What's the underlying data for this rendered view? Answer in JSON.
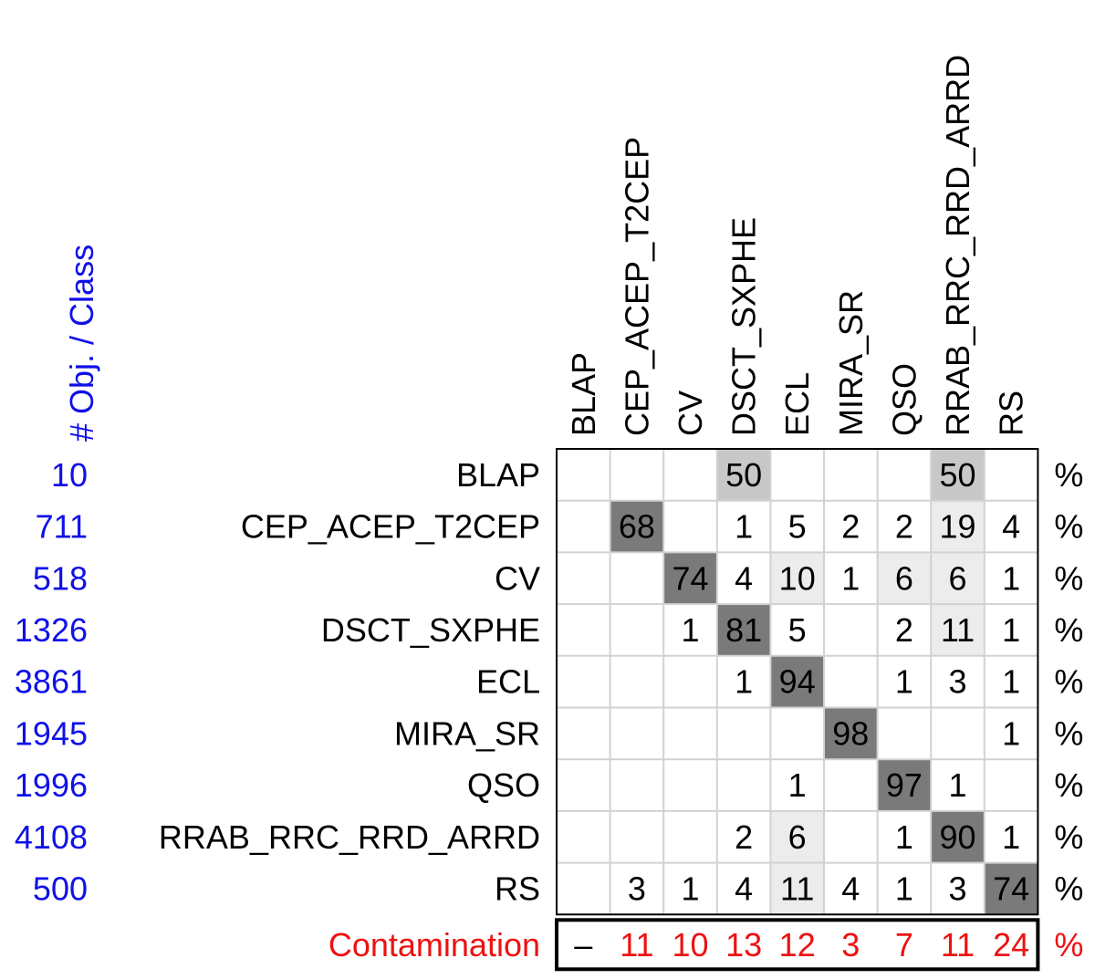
{
  "chart_data": {
    "type": "heatmap",
    "title": "",
    "count_header": "# Obj. / Class",
    "columns": [
      "BLAP",
      "CEP_ACEP_T2CEP",
      "CV",
      "DSCT_SXPHE",
      "ECL",
      "MIRA_SR",
      "QSO",
      "RRAB_RRC_RRD_ARRD",
      "RS"
    ],
    "rows": [
      {
        "label": "BLAP",
        "count": "10",
        "values": [
          null,
          null,
          null,
          50,
          null,
          null,
          null,
          50,
          null
        ]
      },
      {
        "label": "CEP_ACEP_T2CEP",
        "count": "711",
        "values": [
          null,
          68,
          null,
          1,
          5,
          2,
          2,
          19,
          4
        ]
      },
      {
        "label": "CV",
        "count": "518",
        "values": [
          null,
          null,
          74,
          4,
          10,
          1,
          6,
          6,
          1
        ]
      },
      {
        "label": "DSCT_SXPHE",
        "count": "1326",
        "values": [
          null,
          null,
          1,
          81,
          5,
          null,
          2,
          11,
          1
        ]
      },
      {
        "label": "ECL",
        "count": "3861",
        "values": [
          null,
          null,
          null,
          1,
          94,
          null,
          1,
          3,
          1
        ]
      },
      {
        "label": "MIRA_SR",
        "count": "1945",
        "values": [
          null,
          null,
          null,
          null,
          null,
          98,
          null,
          null,
          1
        ]
      },
      {
        "label": "QSO",
        "count": "1996",
        "values": [
          null,
          null,
          null,
          null,
          1,
          null,
          97,
          1,
          null
        ]
      },
      {
        "label": "RRAB_RRC_RRD_ARRD",
        "count": "4108",
        "values": [
          null,
          null,
          null,
          2,
          6,
          null,
          1,
          90,
          1
        ]
      },
      {
        "label": "RS",
        "count": "500",
        "values": [
          null,
          3,
          1,
          4,
          11,
          4,
          1,
          3,
          74
        ]
      }
    ],
    "unit": "%",
    "contamination": {
      "label": "Contamination",
      "values": [
        "–",
        "11",
        "10",
        "13",
        "12",
        "3",
        "7",
        "11",
        "24"
      ]
    },
    "colors": {
      "count_text": "#1010e8",
      "contamination_text": "#ee1111",
      "grid_line": "#d2d2d2",
      "border": "#000000",
      "shade_light": "#ececec",
      "shade_mid": "#c8c8c8",
      "shade_dark": "#7a7a7a"
    }
  }
}
